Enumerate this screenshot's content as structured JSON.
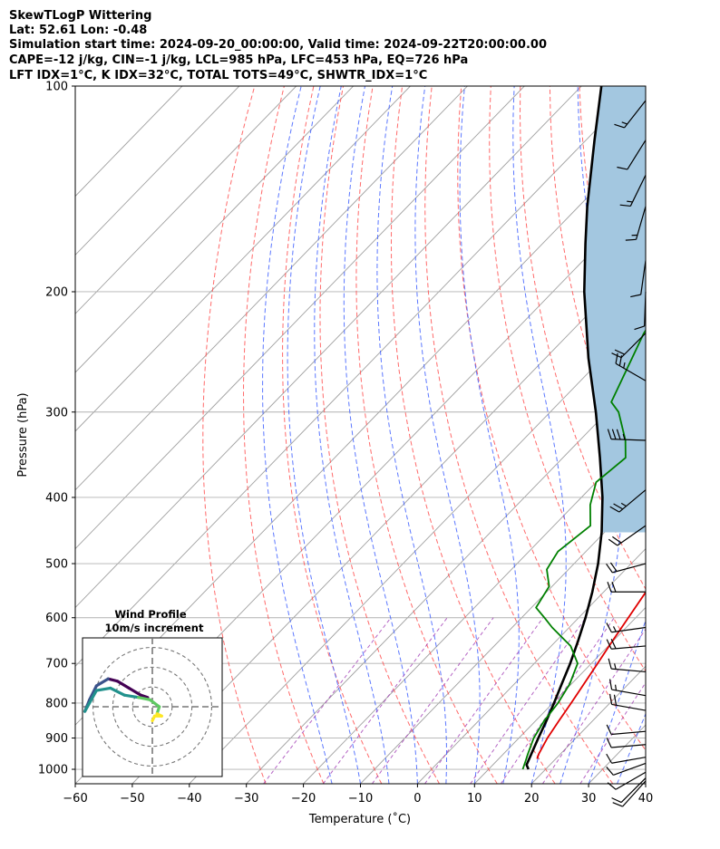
{
  "header": {
    "line1": "SkewTLogP Wittering",
    "line2": "Lat: 52.61   Lon: -0.48",
    "line3": "Simulation start time: 2024-09-20_00:00:00, Valid time: 2024-09-22T20:00:00.00",
    "line4": "CAPE=-12 j/kg, CIN=-1 j/kg, LCL=985 hPa, LFC=453 hPa, EQ=726 hPa",
    "line5": "LFT IDX=1°C, K IDX=32°C, TOTAL TOTS=49°C, SHWTR_IDX=1°C"
  },
  "chart_data": [
    {
      "type": "line",
      "subtype": "skew-T log-P",
      "title": "",
      "xlabel": "Temperature (˚C)",
      "ylabel": "Pressure (hPa)",
      "xlim": [
        -60,
        40
      ],
      "ylim": [
        1050,
        100
      ],
      "y_scale": "log",
      "x_ticks": [
        -60,
        -50,
        -40,
        -30,
        -20,
        -10,
        0,
        10,
        20,
        30,
        40
      ],
      "x_tick_labels": [
        "−60",
        "−50",
        "−40",
        "−30",
        "−20",
        "−10",
        "0",
        "10",
        "20",
        "30",
        "40"
      ],
      "y_ticks": [
        1000,
        900,
        800,
        700,
        600,
        500,
        400,
        300,
        200,
        100
      ],
      "y_tick_labels": [
        "1000",
        "900",
        "800",
        "700",
        "600",
        "500",
        "400",
        "300",
        "200",
        "100"
      ],
      "grid": true,
      "colors": {
        "temperature": "#e00000",
        "dewpoint": "#008000",
        "parcel": "#000000",
        "cape_fill": "#a3c7e0",
        "dry_adiabats": "#ff5050",
        "moist_adiabats": "#4060ff",
        "mixing_ratio": "#9b30b0",
        "isotherms": "#999999"
      },
      "series": [
        {
          "key": "temperature",
          "points": [
            {
              "p": 965,
              "t": 16.7
            },
            {
              "p": 950,
              "t": 16.2
            },
            {
              "p": 900,
              "t": 15.0
            },
            {
              "p": 850,
              "t": 14.1
            },
            {
              "p": 800,
              "t": 13.2
            },
            {
              "p": 750,
              "t": 12.2
            },
            {
              "p": 700,
              "t": 11.1
            },
            {
              "p": 650,
              "t": 9.9
            },
            {
              "p": 600,
              "t": 8.7
            },
            {
              "p": 550,
              "t": 7.4
            },
            {
              "p": 500,
              "t": 5.8
            },
            {
              "p": 450,
              "t": 2.9
            },
            {
              "p": 400,
              "t": -0.7
            },
            {
              "p": 350,
              "t": -5.0
            },
            {
              "p": 300,
              "t": -10.7
            },
            {
              "p": 270,
              "t": -15.0
            },
            {
              "p": 250,
              "t": -18.8
            },
            {
              "p": 235,
              "t": -21.8
            },
            {
              "p": 220,
              "t": -22.0
            },
            {
              "p": 210,
              "t": -21.4
            },
            {
              "p": 200,
              "t": -19.8
            },
            {
              "p": 185,
              "t": -18.5
            },
            {
              "p": 170,
              "t": -18.0
            },
            {
              "p": 150,
              "t": -18.8
            },
            {
              "p": 140,
              "t": -20.5
            },
            {
              "p": 120,
              "t": -23.5
            },
            {
              "p": 100,
              "t": -27.0
            }
          ]
        },
        {
          "key": "dewpoint",
          "points": [
            {
              "p": 1000,
              "t": 16.0
            },
            {
              "p": 970,
              "t": 15.0
            },
            {
              "p": 950,
              "t": 14.3
            },
            {
              "p": 900,
              "t": 12.6
            },
            {
              "p": 850,
              "t": 11.5
            },
            {
              "p": 800,
              "t": 10.9
            },
            {
              "p": 750,
              "t": 9.7
            },
            {
              "p": 700,
              "t": 7.6
            },
            {
              "p": 660,
              "t": 3.4
            },
            {
              "p": 620,
              "t": -3.0
            },
            {
              "p": 600,
              "t": -6.0
            },
            {
              "p": 580,
              "t": -9.2
            },
            {
              "p": 540,
              "t": -10.5
            },
            {
              "p": 510,
              "t": -13.8
            },
            {
              "p": 480,
              "t": -14.9
            },
            {
              "p": 440,
              "t": -13.6
            },
            {
              "p": 410,
              "t": -17.2
            },
            {
              "p": 380,
              "t": -20.0
            },
            {
              "p": 350,
              "t": -19.0
            },
            {
              "p": 330,
              "t": -22.0
            },
            {
              "p": 300,
              "t": -28.0
            },
            {
              "p": 290,
              "t": -31.0
            },
            {
              "p": 230,
              "t": -37.0
            },
            {
              "p": 205,
              "t": -39.0
            },
            {
              "p": 190,
              "t": -42.0
            },
            {
              "p": 170,
              "t": -46.0
            },
            {
              "p": 160,
              "t": -48.0
            },
            {
              "p": 150,
              "t": -50.0
            },
            {
              "p": 145,
              "t": -51.3
            },
            {
              "p": 140,
              "t": -49.5
            },
            {
              "p": 100,
              "t": -40.5
            }
          ]
        },
        {
          "key": "parcel",
          "points": [
            {
              "p": 1000,
              "t": 17.0
            },
            {
              "p": 985,
              "t": 15.9
            },
            {
              "p": 950,
              "t": 14.9
            },
            {
              "p": 900,
              "t": 13.4
            },
            {
              "p": 850,
              "t": 11.9
            },
            {
              "p": 800,
              "t": 10.2
            },
            {
              "p": 750,
              "t": 8.3
            },
            {
              "p": 700,
              "t": 6.3
            },
            {
              "p": 650,
              "t": 3.9
            },
            {
              "p": 600,
              "t": 1.2
            },
            {
              "p": 550,
              "t": -2.0
            },
            {
              "p": 500,
              "t": -5.8
            },
            {
              "p": 450,
              "t": -10.5
            },
            {
              "p": 400,
              "t": -16.3
            },
            {
              "p": 350,
              "t": -23.5
            },
            {
              "p": 300,
              "t": -32.0
            },
            {
              "p": 250,
              "t": -42.5
            },
            {
              "p": 200,
              "t": -54.5
            },
            {
              "p": 170,
              "t": -62.5
            },
            {
              "p": 150,
              "t": -68.5
            },
            {
              "p": 120,
              "t": -78.5
            },
            {
              "p": 100,
              "t": -86.5
            }
          ]
        }
      ],
      "wind_barbs": [
        {
          "p": 1040,
          "dir": 222,
          "spd": 10
        },
        {
          "p": 1030,
          "dir": 225,
          "spd": 9
        },
        {
          "p": 1010,
          "dir": 240,
          "spd": 10
        },
        {
          "p": 980,
          "dir": 250,
          "spd": 12
        },
        {
          "p": 960,
          "dir": 260,
          "spd": 12
        },
        {
          "p": 920,
          "dir": 265,
          "spd": 12
        },
        {
          "p": 880,
          "dir": 265,
          "spd": 12
        },
        {
          "p": 820,
          "dir": 280,
          "spd": 18
        },
        {
          "p": 780,
          "dir": 280,
          "spd": 16
        },
        {
          "p": 720,
          "dir": 275,
          "spd": 16
        },
        {
          "p": 660,
          "dir": 265,
          "spd": 18
        },
        {
          "p": 620,
          "dir": 262,
          "spd": 16
        },
        {
          "p": 550,
          "dir": 270,
          "spd": 18
        },
        {
          "p": 500,
          "dir": 255,
          "spd": 18
        },
        {
          "p": 440,
          "dir": 235,
          "spd": 20
        },
        {
          "p": 390,
          "dir": 230,
          "spd": 24
        },
        {
          "p": 330,
          "dir": 272,
          "spd": 34
        },
        {
          "p": 270,
          "dir": 300,
          "spd": 24
        },
        {
          "p": 230,
          "dir": 225,
          "spd": 21
        },
        {
          "p": 200,
          "dir": 182,
          "spd": 10
        },
        {
          "p": 180,
          "dir": 188,
          "spd": 10
        },
        {
          "p": 150,
          "dir": 196,
          "spd": 16
        },
        {
          "p": 135,
          "dir": 206,
          "spd": 16
        },
        {
          "p": 120,
          "dir": 212,
          "spd": 12
        },
        {
          "p": 105,
          "dir": 218,
          "spd": 14
        }
      ]
    },
    {
      "type": "line",
      "subtype": "hodograph",
      "title": "Wind Profile",
      "subtitle": "10m/s increment",
      "xlim": [
        -30,
        30
      ],
      "ylim": [
        -30,
        30
      ],
      "rings": [
        10,
        20,
        30
      ],
      "colormap": "viridis",
      "points": [
        {
          "u": -2,
          "v": 4
        },
        {
          "u": -5,
          "v": 5
        },
        {
          "u": -10,
          "v": 8
        },
        {
          "u": -15,
          "v": 11
        },
        {
          "u": -19,
          "v": 12
        },
        {
          "u": -24,
          "v": 9
        },
        {
          "u": -27,
          "v": 3
        },
        {
          "u": -29,
          "v": -2
        },
        {
          "u": -24,
          "v": 7
        },
        {
          "u": -18,
          "v": 8
        },
        {
          "u": -12,
          "v": 5
        },
        {
          "u": -6,
          "v": 4
        },
        {
          "u": -1,
          "v": 3
        },
        {
          "u": 3,
          "v": 0
        },
        {
          "u": 2,
          "v": -3
        },
        {
          "u": 4,
          "v": -4
        },
        {
          "u": 1,
          "v": -4
        },
        {
          "u": 0,
          "v": -6
        }
      ]
    }
  ]
}
